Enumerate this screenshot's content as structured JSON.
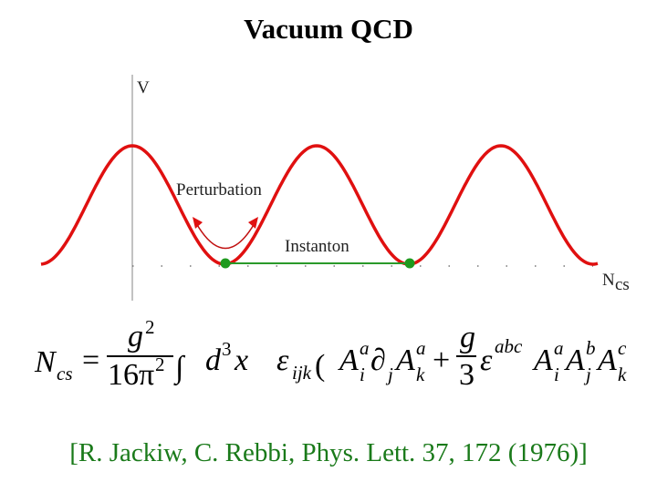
{
  "title": "Vacuum QCD",
  "diagram": {
    "y_axis_label": "V",
    "x_axis_label": "N",
    "x_axis_label_sub": "cs",
    "perturbation_label": "Perturbation",
    "instanton_label": "Instanton"
  },
  "formula": {
    "lhs": "N",
    "lhs_sub": "cs",
    "equals": "=",
    "coef_num": "g",
    "coef_num_sup": "2",
    "coef_den": "16π",
    "coef_den_sup": "2",
    "integral": "∫",
    "measure": "d",
    "measure_sup": "3",
    "measure_var": "x",
    "epsilon": "ε",
    "epsilon_sub": "ijk",
    "paren": "(",
    "term1": [
      {
        "text": "A",
        "sub": "i",
        "sup": "a"
      },
      {
        "text": "∂",
        "sub": "j"
      },
      {
        "text": "A",
        "sub": "k",
        "sup": "a"
      }
    ],
    "plus": "+",
    "frac_num": "g",
    "frac_den": "3",
    "epsilon2": "ε",
    "epsilon2_sup": "abc",
    "term2": [
      {
        "text": "A",
        "sub": "i",
        "sup": "a"
      },
      {
        "text": "A",
        "sub": "j",
        "sup": "b"
      },
      {
        "text": "A",
        "sub": "k",
        "sup": "c"
      }
    ]
  },
  "citation": "[R. Jackiw, C. Rebbi, Phys. Lett. 37, 172 (1976)]"
}
